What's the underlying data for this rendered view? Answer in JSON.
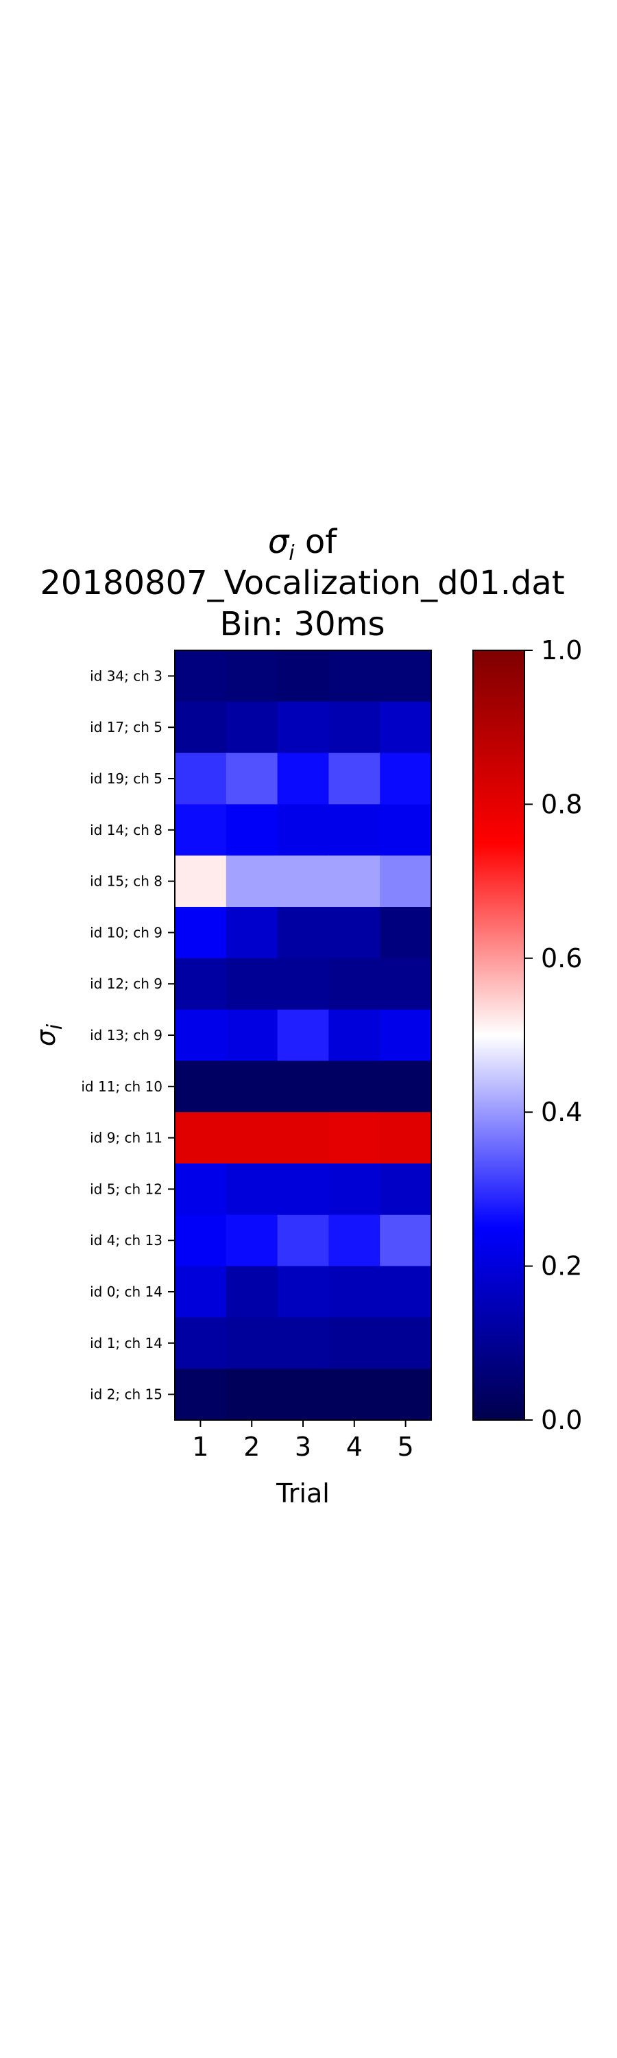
{
  "chart_data": {
    "type": "heatmap",
    "title_lines": [
      "of",
      "20180807_Vocalization_d01.dat",
      "Bin: 30ms"
    ],
    "title_symbol": "σ",
    "title_symbol_sub": "i",
    "xlabel": "Trial",
    "ylabel_symbol": "σ",
    "ylabel_symbol_sub": "i",
    "x_categories": [
      "1",
      "2",
      "3",
      "4",
      "5"
    ],
    "y_categories": [
      "id 34; ch 3",
      "id 17; ch 5",
      "id 19; ch 5",
      "id 14; ch 8",
      "id 15; ch 8",
      "id 10; ch 9",
      "id 12; ch 9",
      "id 13; ch 9",
      "id 11; ch 10",
      "id 9; ch 11",
      "id 5; ch 12",
      "id 4; ch 13",
      "id 0; ch 14",
      "id 1; ch 14",
      "id 2; ch 15"
    ],
    "values": [
      [
        0.07,
        0.06,
        0.05,
        0.06,
        0.06
      ],
      [
        0.1,
        0.12,
        0.15,
        0.14,
        0.17
      ],
      [
        0.3,
        0.33,
        0.26,
        0.32,
        0.26
      ],
      [
        0.26,
        0.24,
        0.22,
        0.22,
        0.23
      ],
      [
        0.52,
        0.41,
        0.41,
        0.41,
        0.38
      ],
      [
        0.24,
        0.18,
        0.12,
        0.12,
        0.07
      ],
      [
        0.12,
        0.1,
        0.1,
        0.09,
        0.09
      ],
      [
        0.22,
        0.21,
        0.28,
        0.2,
        0.22
      ],
      [
        0.03,
        0.03,
        0.03,
        0.03,
        0.03
      ],
      [
        0.81,
        0.81,
        0.81,
        0.8,
        0.81
      ],
      [
        0.22,
        0.2,
        0.2,
        0.19,
        0.17
      ],
      [
        0.24,
        0.26,
        0.3,
        0.27,
        0.33
      ],
      [
        0.2,
        0.13,
        0.16,
        0.15,
        0.15
      ],
      [
        0.12,
        0.11,
        0.11,
        0.1,
        0.1
      ],
      [
        0.03,
        0.02,
        0.02,
        0.02,
        0.02
      ]
    ],
    "colormap": "seismic",
    "vmin": 0.0,
    "vmax": 1.0,
    "colorbar_ticks": [
      "0.0",
      "0.2",
      "0.4",
      "0.6",
      "0.8",
      "1.0"
    ],
    "colorbar_tick_values": [
      0.0,
      0.2,
      0.4,
      0.6,
      0.8,
      1.0
    ],
    "grid": false
  }
}
